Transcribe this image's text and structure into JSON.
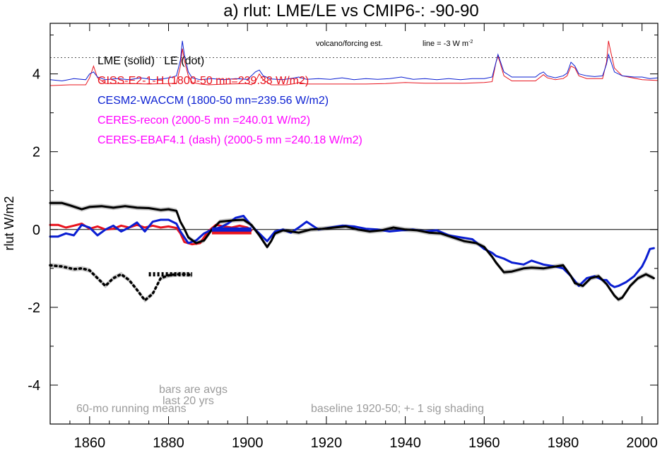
{
  "colors": {
    "lme": "#000000",
    "giss": "#e8141e",
    "cesm": "#0a1ed2",
    "ceres": "#ff00ff",
    "shade": "#c8c8c8",
    "note": "#9b9b9b"
  },
  "chart_data": {
    "type": "line",
    "title": "a) rlut: LME/LE vs CMIP6-: -90-90",
    "ylabel": "rlut W/m2",
    "xlabel": "",
    "xlim": [
      1850,
      2004
    ],
    "ylim": [
      -5,
      5.3
    ],
    "xticks": [
      1860,
      1880,
      1900,
      1920,
      1940,
      1960,
      1980,
      2000
    ],
    "yticks": [
      -4,
      -2,
      0,
      2,
      4
    ],
    "legend": [
      {
        "text": "LME (solid)   LE (dot)",
        "color": "#000000"
      },
      {
        "text": "GISS-E2-1-H (1800-50 mn=239.38 W/m2)",
        "color": "#e8141e"
      },
      {
        "text": "CESM2-WACCM (1800-50 mn=239.56 W/m2)",
        "color": "#0a1ed2"
      },
      {
        "text": "CERES-recon (2000-5 mn =240.01 W/m2)",
        "color": "#ff00ff"
      },
      {
        "text": "CERES-EBAF4.1 (dash) (2000-5 mn =240.18 W/m2)",
        "color": "#ff00ff"
      }
    ],
    "annotations": {
      "volcano": "volcano/forcing est.",
      "line_prefix": "line = -3 W m",
      "line_sup": "-2",
      "running": "60-mo running means",
      "bars1": "bars are avgs",
      "bars2": "last 20 yrs",
      "baseline": "baseline 1920-50; +- 1 sig shading"
    },
    "volcano_reference": 4.42,
    "series": [
      {
        "name": "LME",
        "color": "#000000",
        "style": "solid",
        "shade_sigma": 0.06,
        "x": [
          1850,
          1853,
          1855,
          1858,
          1860,
          1863,
          1866,
          1869,
          1872,
          1875,
          1878,
          1880,
          1882,
          1883,
          1884,
          1885,
          1887,
          1889,
          1891,
          1893,
          1895,
          1897,
          1899,
          1901,
          1903,
          1905,
          1906,
          1907,
          1909,
          1911,
          1913,
          1916,
          1919,
          1922,
          1925,
          1928,
          1931,
          1934,
          1937,
          1940,
          1943,
          1946,
          1949,
          1952,
          1955,
          1958,
          1960,
          1962,
          1963,
          1965,
          1967,
          1970,
          1972,
          1975,
          1978,
          1980,
          1982,
          1983,
          1985,
          1987,
          1989,
          1991,
          1992,
          1993,
          1994,
          1995,
          1997,
          1999,
          2001,
          2003
        ],
        "y": [
          0.68,
          0.68,
          0.62,
          0.52,
          0.58,
          0.6,
          0.56,
          0.6,
          0.56,
          0.55,
          0.5,
          0.52,
          0.48,
          0.2,
          0.02,
          -0.2,
          -0.35,
          -0.28,
          0.0,
          0.2,
          0.22,
          0.24,
          0.25,
          0.12,
          -0.15,
          -0.45,
          -0.3,
          -0.1,
          -0.02,
          -0.05,
          -0.08,
          0.0,
          0.02,
          0.05,
          0.08,
          0.0,
          -0.05,
          -0.02,
          0.05,
          0.0,
          -0.02,
          -0.08,
          -0.1,
          -0.2,
          -0.3,
          -0.35,
          -0.45,
          -0.7,
          -0.85,
          -1.1,
          -1.08,
          -1.0,
          -0.98,
          -1.0,
          -0.95,
          -0.92,
          -1.2,
          -1.38,
          -1.45,
          -1.25,
          -1.2,
          -1.4,
          -1.55,
          -1.7,
          -1.8,
          -1.75,
          -1.45,
          -1.25,
          -1.15,
          -1.25
        ]
      },
      {
        "name": "LE",
        "color": "#000000",
        "style": "dot",
        "shade_sigma": 0.06,
        "x": [
          1850,
          1853,
          1856,
          1858,
          1860,
          1862,
          1864,
          1866,
          1868,
          1870,
          1872,
          1874,
          1876,
          1878,
          1880,
          1882,
          1884,
          1886
        ],
        "y": [
          -0.92,
          -0.95,
          -1.02,
          -1.0,
          -1.05,
          -1.25,
          -1.45,
          -1.25,
          -1.15,
          -1.3,
          -1.55,
          -1.82,
          -1.65,
          -1.25,
          -1.18,
          -1.15,
          -1.15,
          -1.17
        ]
      },
      {
        "name": "GISS-E2-1-H",
        "color": "#e8141e",
        "style": "solid",
        "x": [
          1850,
          1852,
          1854,
          1856,
          1858,
          1860,
          1862,
          1864,
          1866,
          1868,
          1870,
          1872,
          1874,
          1876,
          1878,
          1880,
          1882,
          1883,
          1884,
          1886,
          1888,
          1890,
          1892,
          1894,
          1896,
          1898,
          1900,
          1901
        ],
        "y": [
          0.12,
          0.12,
          0.05,
          0.1,
          0.15,
          0.02,
          0.08,
          0.0,
          0.02,
          0.1,
          0.05,
          0.12,
          0.05,
          0.1,
          0.05,
          0.08,
          0.04,
          -0.1,
          -0.32,
          -0.38,
          -0.35,
          -0.05,
          0.12,
          0.08,
          0.05,
          0.1,
          0.05,
          -0.02
        ]
      },
      {
        "name": "CESM2-WACCM",
        "color": "#0a1ed2",
        "style": "solid",
        "x": [
          1850,
          1852,
          1854,
          1856,
          1858,
          1860,
          1862,
          1864,
          1866,
          1868,
          1870,
          1872,
          1874,
          1876,
          1878,
          1880,
          1882,
          1883,
          1884,
          1885,
          1887,
          1889,
          1891,
          1893,
          1895,
          1897,
          1899,
          1901,
          1903,
          1905,
          1907,
          1909,
          1911,
          1913,
          1915,
          1918,
          1921,
          1924,
          1927,
          1930,
          1933,
          1936,
          1939,
          1942,
          1945,
          1948,
          1951,
          1954,
          1957,
          1960,
          1962,
          1963,
          1965,
          1967,
          1970,
          1972,
          1975,
          1978,
          1980,
          1982,
          1984,
          1986,
          1988,
          1990,
          1991,
          1992,
          1993,
          1994,
          1996,
          1998,
          2000,
          2001,
          2002,
          2003
        ],
        "y": [
          -0.18,
          -0.18,
          -0.1,
          -0.15,
          0.12,
          0.05,
          -0.15,
          0.0,
          0.1,
          -0.05,
          0.05,
          0.18,
          -0.05,
          0.2,
          0.25,
          0.25,
          0.15,
          -0.05,
          -0.2,
          -0.35,
          -0.28,
          -0.1,
          0.0,
          0.05,
          0.15,
          0.3,
          0.35,
          0.1,
          -0.1,
          -0.3,
          -0.05,
          0.0,
          -0.08,
          0.05,
          0.2,
          0.0,
          0.05,
          0.1,
          0.08,
          0.02,
          0.0,
          -0.05,
          -0.02,
          0.0,
          -0.05,
          -0.02,
          -0.15,
          -0.2,
          -0.25,
          -0.5,
          -0.6,
          -0.68,
          -0.75,
          -0.85,
          -0.9,
          -0.8,
          -0.9,
          -0.95,
          -1.0,
          -1.2,
          -1.45,
          -1.25,
          -1.2,
          -1.3,
          -1.3,
          -1.42,
          -1.48,
          -1.45,
          -1.35,
          -1.2,
          -0.95,
          -0.75,
          -0.5,
          -0.48
        ]
      }
    ],
    "bars": [
      {
        "name": "LE",
        "color": "#000000",
        "style": "dot",
        "x": [
          1875,
          1886
        ],
        "y": -1.15
      },
      {
        "name": "GISS-E2-1-H",
        "color": "#e8141e",
        "x": [
          1891,
          1901
        ],
        "y": -0.07
      },
      {
        "name": "CESM2-WACCM",
        "color": "#0a1ed2",
        "x": [
          1891,
          1901
        ],
        "y": 0.0
      }
    ],
    "forcing": [
      {
        "name": "GISS-E2-1-H forcing",
        "color": "#e8141e",
        "x": [
          1850,
          1855,
          1859,
          1860,
          1861,
          1862,
          1864,
          1870,
          1875,
          1880,
          1882,
          1883,
          1883.5,
          1884,
          1885,
          1886,
          1888,
          1890,
          1895,
          1900,
          1901,
          1902,
          1903,
          1904,
          1906,
          1910,
          1912,
          1913,
          1915,
          1920,
          1925,
          1930,
          1935,
          1940,
          1945,
          1950,
          1955,
          1960,
          1962,
          1963,
          1963.5,
          1964,
          1965,
          1967,
          1970,
          1973,
          1974,
          1975,
          1976,
          1978,
          1980,
          1981,
          1982,
          1983,
          1984,
          1986,
          1990,
          1991,
          1991.5,
          1992,
          1993,
          1995,
          2000,
          2004
        ],
        "y": [
          3.7,
          3.72,
          3.72,
          3.9,
          4.2,
          3.9,
          3.75,
          3.75,
          3.74,
          3.75,
          3.76,
          4.2,
          4.65,
          4.35,
          3.95,
          3.78,
          3.74,
          3.72,
          3.74,
          3.75,
          3.72,
          3.8,
          4.0,
          3.85,
          3.72,
          3.72,
          3.75,
          3.78,
          3.74,
          3.74,
          3.74,
          3.74,
          3.75,
          3.78,
          3.76,
          3.76,
          3.76,
          3.78,
          3.8,
          4.3,
          4.45,
          4.3,
          3.95,
          3.82,
          3.82,
          3.82,
          3.9,
          3.98,
          3.9,
          3.85,
          3.88,
          3.95,
          4.2,
          4.15,
          3.95,
          3.88,
          3.88,
          4.3,
          4.85,
          4.6,
          4.15,
          3.95,
          3.85,
          3.83
        ]
      },
      {
        "name": "CESM2-WACCM forcing",
        "color": "#0a1ed2",
        "x": [
          1850,
          1853,
          1856,
          1859,
          1860,
          1861,
          1862,
          1864,
          1867,
          1870,
          1873,
          1876,
          1879,
          1881,
          1882,
          1883,
          1883.5,
          1884,
          1885,
          1886,
          1888,
          1891,
          1894,
          1897,
          1900,
          1901,
          1902,
          1903,
          1904,
          1906,
          1909,
          1912,
          1913,
          1915,
          1918,
          1921,
          1924,
          1927,
          1930,
          1933,
          1936,
          1939,
          1942,
          1945,
          1948,
          1951,
          1954,
          1957,
          1960,
          1962,
          1963,
          1963.5,
          1964,
          1965,
          1967,
          1970,
          1973,
          1974,
          1975,
          1976,
          1978,
          1980,
          1981,
          1982,
          1983,
          1984,
          1986,
          1988,
          1990,
          1991,
          1991.5,
          1992,
          1993,
          1995,
          1998,
          2000,
          2002,
          2004
        ],
        "y": [
          3.85,
          3.82,
          3.88,
          3.85,
          4.0,
          4.05,
          3.92,
          3.85,
          3.88,
          3.85,
          3.9,
          3.85,
          3.88,
          3.92,
          3.95,
          4.35,
          4.85,
          4.5,
          4.05,
          3.9,
          3.85,
          3.88,
          3.85,
          3.88,
          3.86,
          3.95,
          4.05,
          4.1,
          3.95,
          3.87,
          3.85,
          3.9,
          3.92,
          3.86,
          3.88,
          3.86,
          3.9,
          3.85,
          3.88,
          3.86,
          3.88,
          3.92,
          3.86,
          3.88,
          3.85,
          3.88,
          3.85,
          3.88,
          3.88,
          3.92,
          4.3,
          4.5,
          4.35,
          4.05,
          3.92,
          3.92,
          3.92,
          4.0,
          4.05,
          3.95,
          3.9,
          3.95,
          4.02,
          4.3,
          4.2,
          4.0,
          3.95,
          3.93,
          3.95,
          4.25,
          4.5,
          4.35,
          4.05,
          3.95,
          3.92,
          3.92,
          3.88,
          3.9
        ]
      }
    ]
  }
}
